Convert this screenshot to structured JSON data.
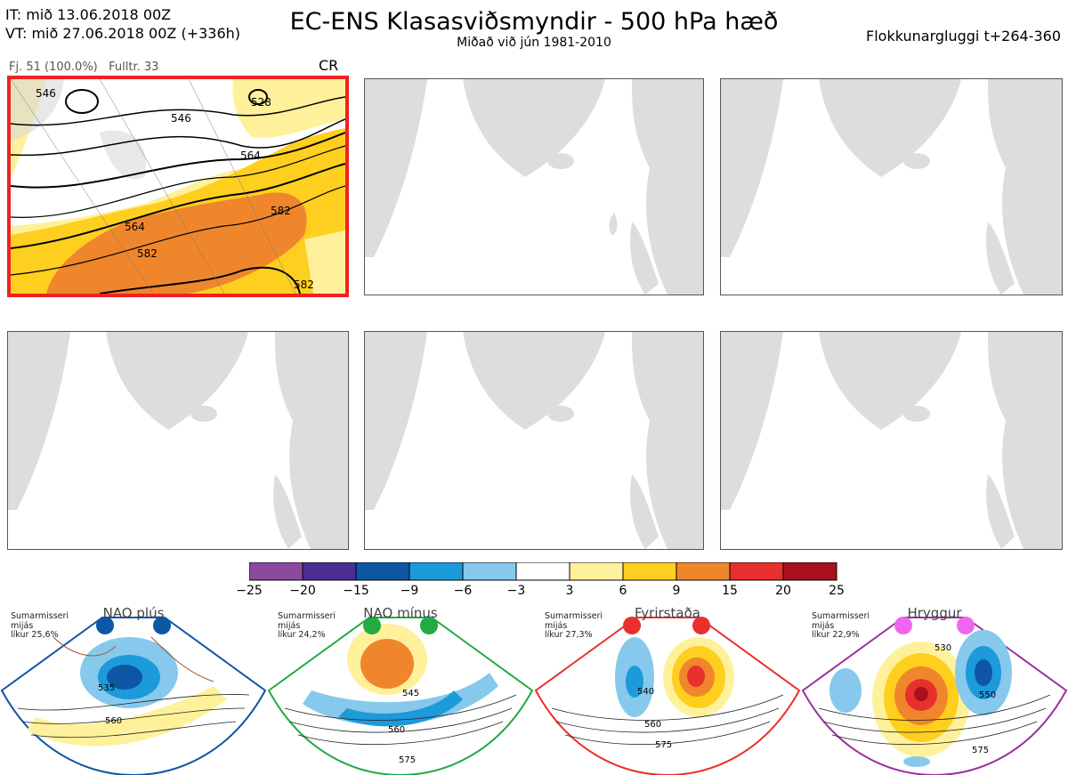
{
  "header": {
    "it_line": "IT: mið 13.06.2018 00Z",
    "vt_line": "VT: mið 27.06.2018 00Z  (+336h)",
    "title": "EC-ENS Klasasviðsmyndir - 500 hPa hæð",
    "subtitle": "Miðað við jún 1981-2010",
    "window": "Flokkunargluggi t+264-360"
  },
  "cluster": {
    "members": "Fj. 51 (100.0%)",
    "fulltr": "Fulltr. 33",
    "regime": "CR",
    "contour_labels": [
      "528",
      "546",
      "546",
      "564",
      "564",
      "582",
      "582",
      "582"
    ]
  },
  "colorbar": {
    "ticks": [
      "−25",
      "−20",
      "−15",
      "−9",
      "−6",
      "−3",
      "3",
      "6",
      "9",
      "15",
      "20",
      "25"
    ],
    "colors": [
      "#8c4a9e",
      "#4b2e8f",
      "#0d57a5",
      "#1c9ad9",
      "#86c9ec",
      "#ffffff",
      "#fff19b",
      "#ffcf1f",
      "#f0862b",
      "#e8302e",
      "#a8111d"
    ]
  },
  "regimes": [
    {
      "name": "NAO plús",
      "season": "Sumarmisseri",
      "clim": "mijás",
      "prob": "líkur 25,6%",
      "color": "#0d57a5",
      "labels": [
        "535",
        "560"
      ]
    },
    {
      "name": "NAO mínus",
      "season": "Sumarmisseri",
      "clim": "mijás",
      "prob": "líkur 24,2%",
      "color": "#22aa44",
      "labels": [
        "545",
        "560",
        "575"
      ]
    },
    {
      "name": "Fyrirstaða",
      "season": "Sumarmisseri",
      "clim": "mijás",
      "prob": "líkur 27,3%",
      "color": "#e8302e",
      "labels": [
        "540",
        "560",
        "575"
      ]
    },
    {
      "name": "Hryggur",
      "season": "Sumarmisseri",
      "clim": "mijás",
      "prob": "líkur 22,9%",
      "color": "#ee66ee",
      "labels": [
        "530",
        "550",
        "575"
      ]
    }
  ]
}
